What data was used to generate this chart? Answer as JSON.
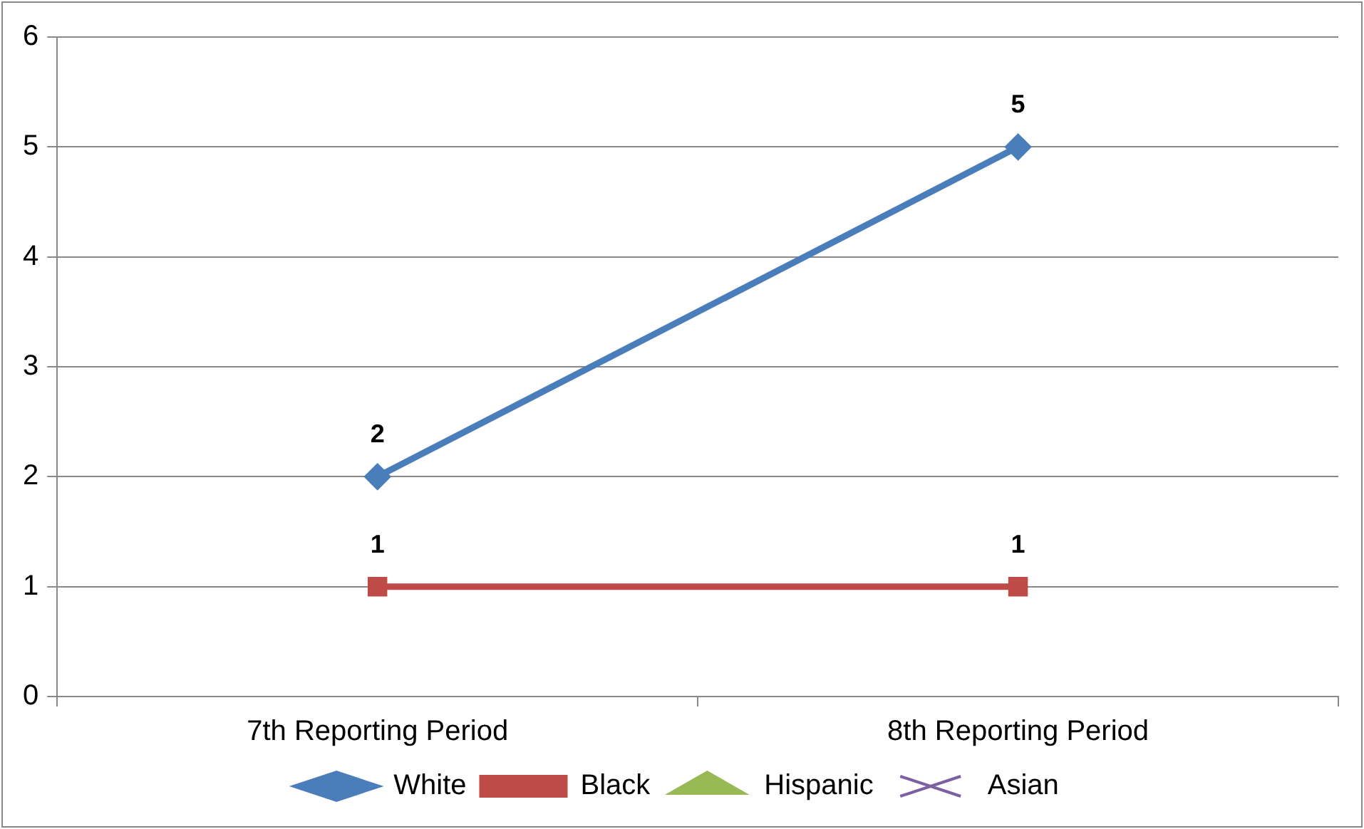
{
  "chart_data": {
    "type": "line",
    "categories": [
      "7th Reporting Period",
      "8th Reporting Period"
    ],
    "series": [
      {
        "name": "White",
        "color": "#4a7ebb",
        "marker": "diamond",
        "values": [
          2,
          5
        ]
      },
      {
        "name": "Black",
        "color": "#be4b48",
        "marker": "square",
        "values": [
          1,
          1
        ]
      },
      {
        "name": "Hispanic",
        "color": "#98b954",
        "marker": "triangle",
        "values": [
          null,
          null
        ]
      },
      {
        "name": "Asian",
        "color": "#7d60a0",
        "marker": "cross",
        "values": [
          null,
          null
        ]
      }
    ],
    "ylim": [
      0,
      6
    ],
    "yticks": [
      0,
      1,
      2,
      3,
      4,
      5,
      6
    ],
    "grid": "y",
    "legend": "bottom",
    "data_labels": true
  }
}
